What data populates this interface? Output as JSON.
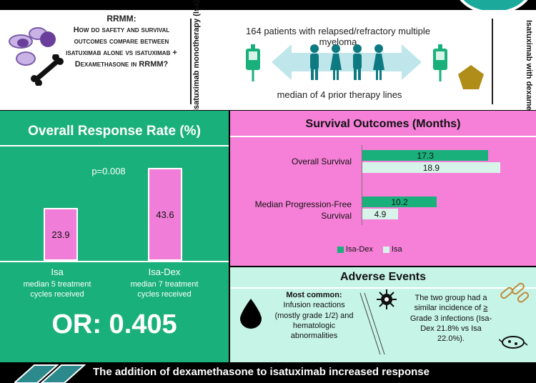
{
  "header": {
    "question_title": "RRMM:",
    "question_body": "How do safety and survival outcomes compare between isatuximab alone vs isatuximab + Dexamethasone in RRMM?",
    "left_arm": "Isatuximab monotherapy (Isa)",
    "right_arm": "Isatuximab with dexamethasone (Isa-Dex)",
    "patients": "164 patients with relapsed/refractory multiple myeloma",
    "prior_lines": "median of 4 prior therapy lines"
  },
  "orr": {
    "title": "Overall Response Rate (%)",
    "p_value": "p=0.008",
    "groups": [
      {
        "name": "Isa",
        "value": "23.9",
        "note": "median 5 treatment cycles received"
      },
      {
        "name": "Isa-Dex",
        "value": "43.6",
        "note": "median 7 treatment cycles received"
      }
    ],
    "odds_ratio": "OR: 0.405"
  },
  "chart_data": {
    "type": "bar",
    "title": "Survival Outcomes (Months)",
    "categories": [
      "Overall Survival",
      "Median Progression-Free Survival"
    ],
    "series": [
      {
        "name": "Isa-Dex",
        "values": [
          17.3,
          10.2
        ],
        "color": "#1ab07c"
      },
      {
        "name": "Isa",
        "values": [
          18.9,
          4.9
        ],
        "color": "#d8f4ea"
      }
    ],
    "value_labels": {
      "os_isadex": "17.3",
      "os_isa": "18.9",
      "pfs_isadex": "10.2",
      "pfs_isa": "4.9"
    },
    "legend_position": "bottom"
  },
  "survival": {
    "title": "Survival Outcomes (Months)",
    "cat1": "Overall Survival",
    "cat2": "Median Progression-Free Survival",
    "legend_isadex": "Isa-Dex",
    "legend_isa": "Isa"
  },
  "adverse": {
    "title": "Adverse Events",
    "common_label": "Most common:",
    "common_body": "Infusion reactions (mostly grade 1/2) and hematologic abnormalities",
    "similar_a": "The two group had a similar incidence of",
    "similar_ge": "≥",
    "similar_b": "Grade 3 infections (Isa-Dex 21.8% vs Isa 22.0%)."
  },
  "conclusion": "The addition of dexamethasone to isatuximab increased response"
}
